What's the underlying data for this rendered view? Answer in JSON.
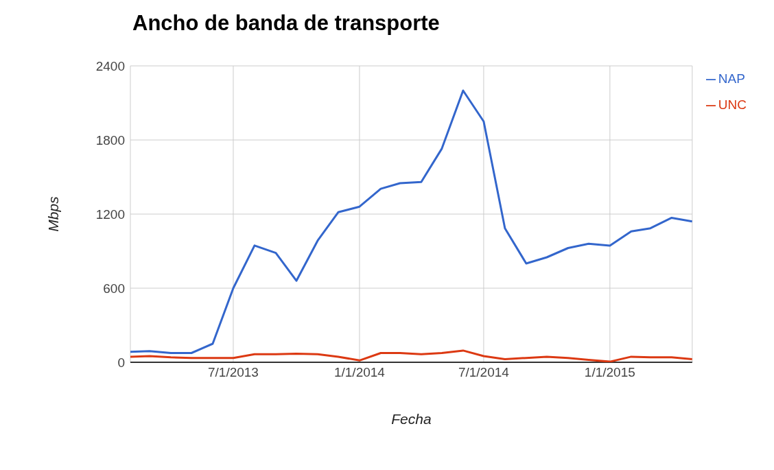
{
  "chart_data": {
    "type": "line",
    "title": "Ancho de banda de transporte",
    "xlabel": "Fecha",
    "ylabel": "Mbps",
    "x": [
      "2013-02",
      "2013-03",
      "2013-04",
      "2013-05",
      "2013-06",
      "2013-07",
      "2013-08",
      "2013-09",
      "2013-10",
      "2013-11",
      "2013-12",
      "2014-01",
      "2014-02",
      "2014-03",
      "2014-04",
      "2014-05",
      "2014-06",
      "2014-07",
      "2014-08",
      "2014-09",
      "2014-10",
      "2014-11",
      "2014-12",
      "2015-01",
      "2015-02",
      "2015-03",
      "2015-04",
      "2015-05"
    ],
    "series": [
      {
        "name": "NAP",
        "color": "#3366cc",
        "values": [
          85,
          90,
          75,
          75,
          150,
          600,
          945,
          885,
          660,
          985,
          1215,
          1260,
          1405,
          1450,
          1460,
          1730,
          2200,
          1950,
          1085,
          800,
          850,
          925,
          960,
          945,
          1060,
          1085,
          1170,
          1140
        ]
      },
      {
        "name": "UNC",
        "color": "#dc3912",
        "values": [
          45,
          50,
          40,
          35,
          35,
          35,
          65,
          65,
          70,
          65,
          45,
          15,
          75,
          75,
          65,
          75,
          95,
          50,
          25,
          35,
          45,
          35,
          20,
          5,
          45,
          40,
          40,
          25
        ]
      }
    ],
    "xlim": [
      "2013-02",
      "2015-05"
    ],
    "xticks": [
      {
        "value": "2013-07-01",
        "label": "7/1/2013"
      },
      {
        "value": "2014-01-01",
        "label": "1/1/2014"
      },
      {
        "value": "2014-07-01",
        "label": "7/1/2014"
      },
      {
        "value": "2015-01-01",
        "label": "1/1/2015"
      }
    ],
    "ylim": [
      0,
      2400
    ],
    "yticks": [
      0,
      600,
      1200,
      1800,
      2400
    ],
    "grid": true,
    "legend": "top right",
    "marker": "none",
    "line_style": "solid"
  }
}
